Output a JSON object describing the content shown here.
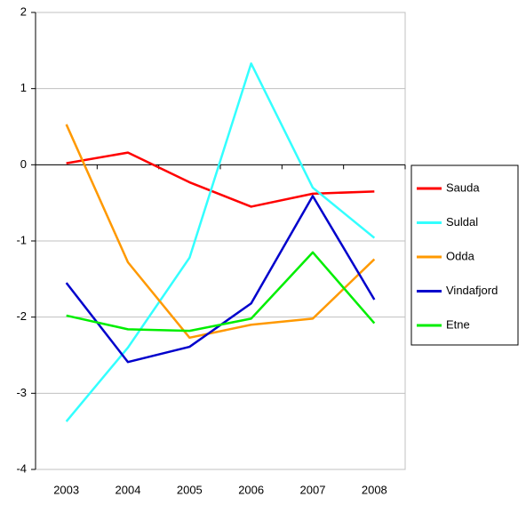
{
  "chart_data": {
    "type": "line",
    "categories": [
      "2003",
      "2004",
      "2005",
      "2006",
      "2007",
      "2008"
    ],
    "series": [
      {
        "name": "Sauda",
        "color": "#ff0000",
        "values": [
          0.02,
          0.16,
          -0.23,
          -0.55,
          -0.38,
          -0.35
        ]
      },
      {
        "name": "Suldal",
        "color": "#33ffff",
        "values": [
          -3.37,
          -2.4,
          -1.22,
          1.33,
          -0.3,
          -0.96
        ]
      },
      {
        "name": "Odda",
        "color": "#ff9900",
        "values": [
          0.53,
          -1.28,
          -2.27,
          -2.1,
          -2.02,
          -1.24
        ]
      },
      {
        "name": "Vindafjord",
        "color": "#0000cc",
        "values": [
          -1.55,
          -2.59,
          -2.39,
          -1.82,
          -0.41,
          -1.77
        ]
      },
      {
        "name": "Etne",
        "color": "#00ee00",
        "values": [
          -1.98,
          -2.16,
          -2.18,
          -2.02,
          -1.15,
          -2.08
        ]
      }
    ],
    "ylim": [
      -4,
      2
    ],
    "yticks": [
      -4,
      -3,
      -2,
      -1,
      0,
      1,
      2
    ],
    "grid": true,
    "legend": "right"
  }
}
